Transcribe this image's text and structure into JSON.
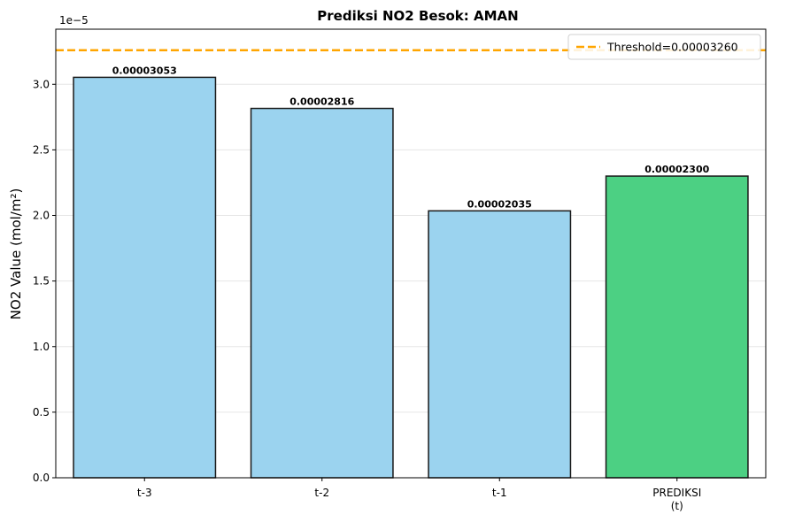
{
  "chart_data": {
    "type": "bar",
    "title": "Prediksi NO2 Besok: AMAN",
    "xlabel": "",
    "ylabel": "NO2 Value (mol/m²)",
    "offset_label": "1e−5",
    "categories": [
      [
        "t-3"
      ],
      [
        "t-2"
      ],
      [
        "t-1"
      ],
      [
        "PREDIKSI",
        "(t)"
      ]
    ],
    "values": [
      3.053,
      2.816,
      2.035,
      2.3
    ],
    "value_labels": [
      "0.00003053",
      "0.00002816",
      "0.00002035",
      "0.00002300"
    ],
    "bar_colors": [
      "#9bd3ef",
      "#9bd3ef",
      "#9bd3ef",
      "#4cd083"
    ],
    "ylim": [
      0,
      3.42
    ],
    "yticks": [
      0.0,
      0.5,
      1.0,
      1.5,
      2.0,
      2.5,
      3.0
    ],
    "ytick_labels": [
      "0.0",
      "0.5",
      "1.0",
      "1.5",
      "2.0",
      "2.5",
      "3.0"
    ],
    "grid": "horizontal",
    "threshold": {
      "value": 3.26,
      "label": "Threshold=0.00003260",
      "color": "#ffa500"
    },
    "legend_position": "top-right"
  }
}
